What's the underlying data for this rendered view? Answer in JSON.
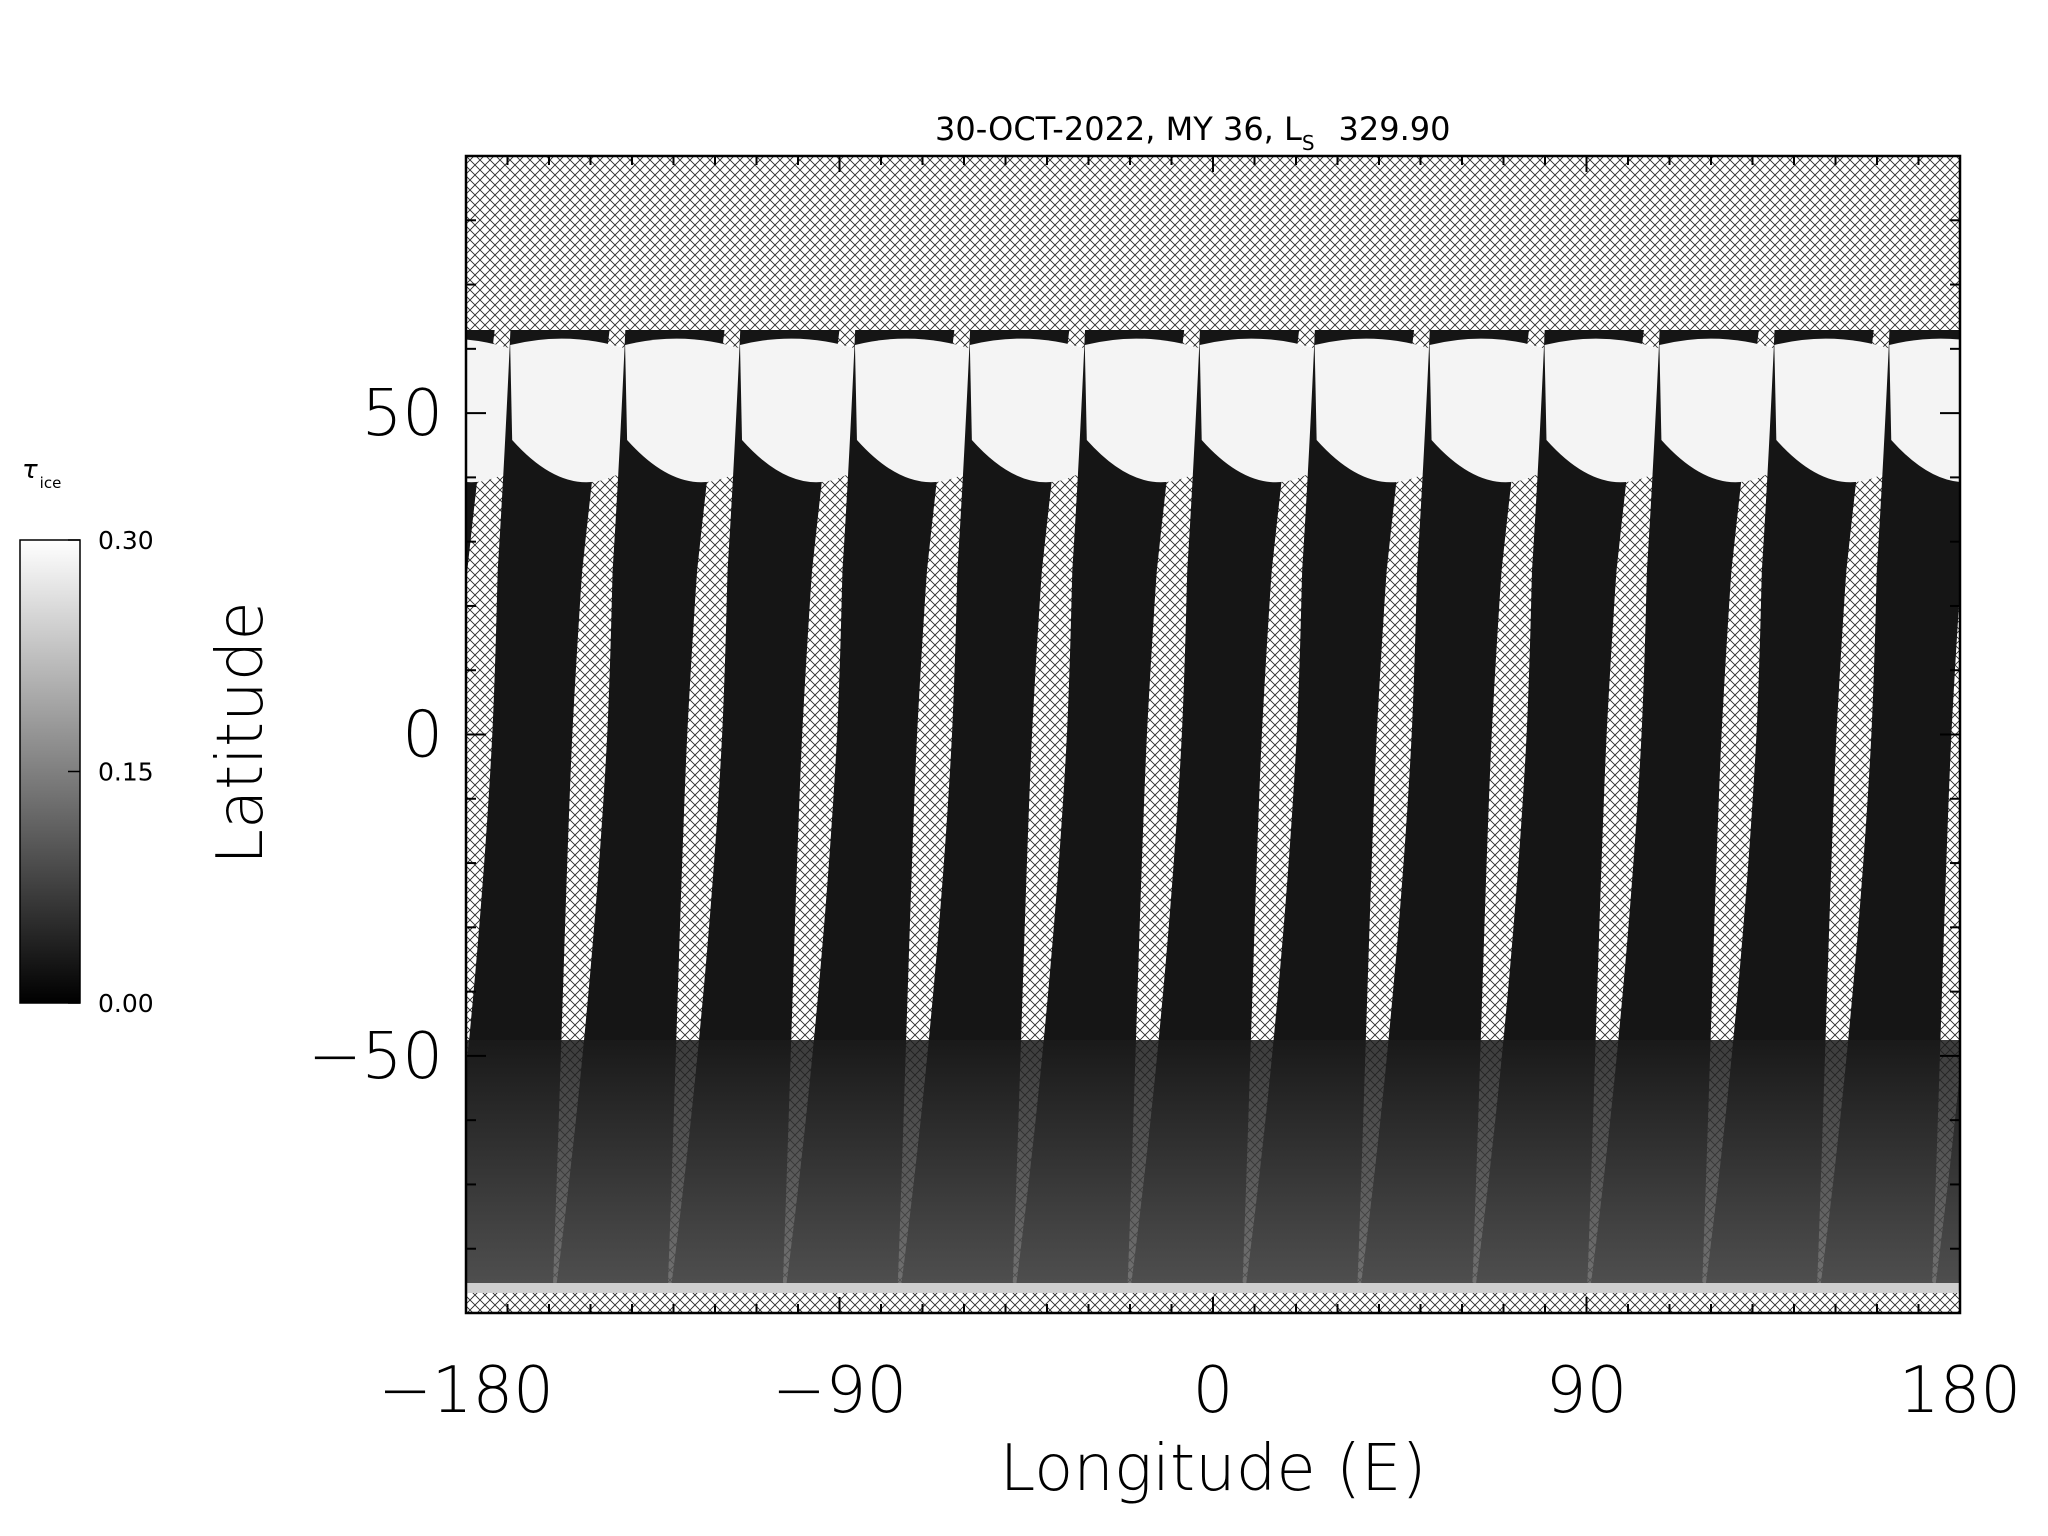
{
  "title": {
    "prefix": "30-OCT-2022, MY 36,  L",
    "subscript": "S",
    "value": "329.90"
  },
  "map": {
    "x_axis": {
      "label": "Longitude (E)",
      "range": [
        -180,
        180
      ],
      "ticks": [
        "−180",
        "−90",
        "0",
        "90",
        "180"
      ],
      "tick_values": [
        -180,
        -90,
        0,
        90,
        180
      ]
    },
    "y_axis": {
      "label": "Latitude",
      "range": [
        -90,
        90
      ],
      "ticks": [
        "50",
        "0",
        "−50"
      ],
      "tick_values": [
        50,
        0,
        -50
      ]
    },
    "no_data_pattern": "cross-hatch",
    "orbit_swaths": 13
  },
  "colorbar": {
    "label_symbol": "τ",
    "label_subscript": "ice",
    "ticks": [
      "0.30",
      "0.15",
      "0.00"
    ],
    "tick_values": [
      0.3,
      0.15,
      0.0
    ],
    "colormap": "grayscale",
    "color_min": "#000000",
    "color_max": "#ffffff"
  }
}
